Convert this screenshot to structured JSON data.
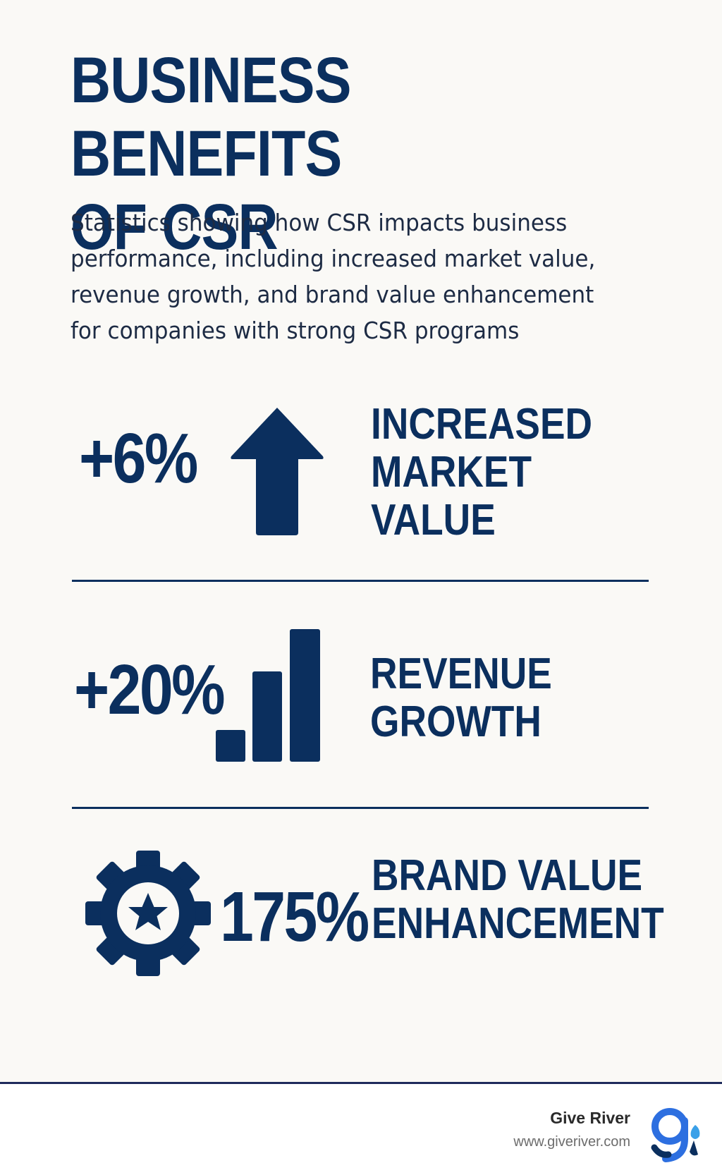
{
  "header": {
    "title_line1": "BUSINESS BENEFITS",
    "title_line2": "OF CSR",
    "subtitle_lines": [
      "Statistics showing how CSR impacts business",
      "performance, including increased market value,",
      "revenue growth, and brand value enhancement",
      "for companies with strong CSR programs"
    ]
  },
  "stats": [
    {
      "value": "+6%",
      "label_lines": [
        "INCREASED",
        "MARKET",
        "VALUE"
      ],
      "icon": "arrow-up-icon"
    },
    {
      "value": "+20%",
      "label_lines": [
        "REVENUE",
        "GROWTH"
      ],
      "icon": "bar-chart-icon"
    },
    {
      "value": "175%",
      "label_lines": [
        "BRAND VALUE",
        "ENHANCEMENT"
      ],
      "icon": "gear-star-icon"
    }
  ],
  "footer": {
    "brand_name": "Give River",
    "brand_url": "www.giveriver.com",
    "logo_icon": "give-river-logo-icon"
  },
  "colors": {
    "primary": "#0b2f5e",
    "background": "#faf9f6",
    "logo_blue": "#2d6fe0",
    "logo_light": "#3aa0e8"
  }
}
